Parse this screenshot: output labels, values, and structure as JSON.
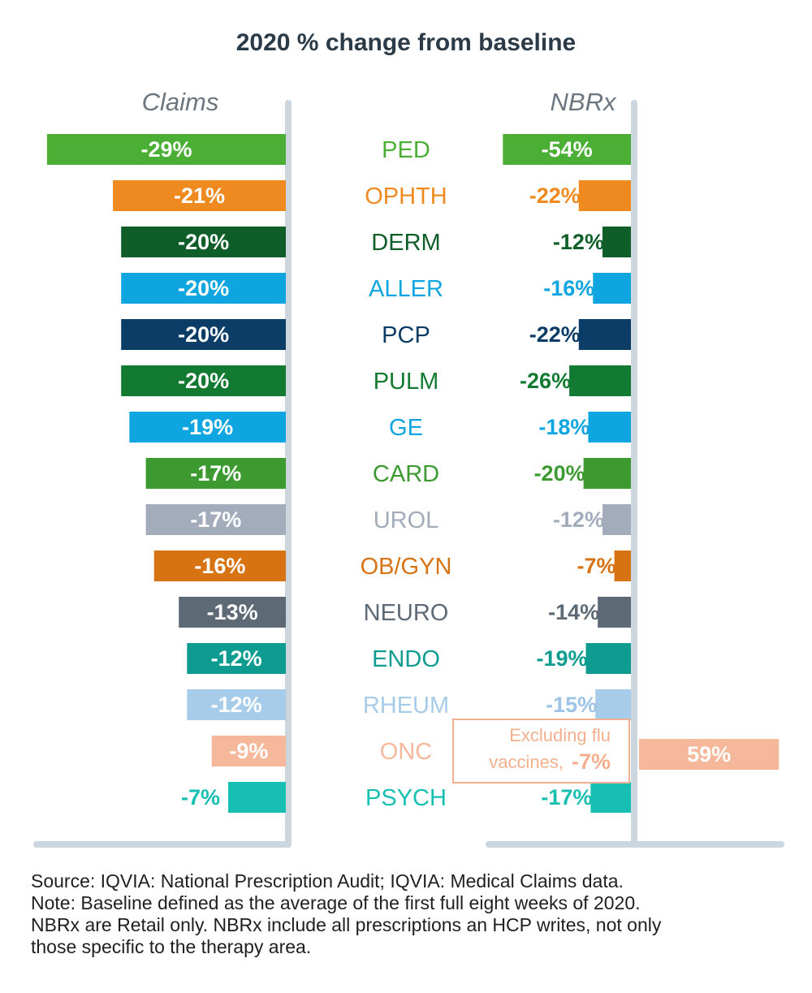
{
  "chart_data": {
    "type": "bar",
    "title": "2020 % change from baseline",
    "left_label": "Claims",
    "right_label": "NBRx",
    "categories": [
      "PED",
      "OPHTH",
      "DERM",
      "ALLER",
      "PCP",
      "PULM",
      "GE",
      "CARD",
      "UROL",
      "OB/GYN",
      "NEURO",
      "ENDO",
      "RHEUM",
      "ONC",
      "PSYCH"
    ],
    "category_colors": [
      "#4aaf34",
      "#ef8a20",
      "#0f5e2a",
      "#0ea5e0",
      "#0b3d66",
      "#127a31",
      "#0ea5e0",
      "#3c9a31",
      "#a3acba",
      "#d87314",
      "#5d6a75",
      "#0f9c90",
      "#a7cce9",
      "#f6b89b",
      "#16bfb2"
    ],
    "series": [
      {
        "name": "Claims",
        "values": [
          -29,
          -21,
          -20,
          -20,
          -20,
          -20,
          -19,
          -17,
          -17,
          -16,
          -13,
          -12,
          -12,
          -9,
          -7
        ],
        "labels": [
          "-29%",
          "-21%",
          "-20%",
          "-20%",
          "-20%",
          "-20%",
          "-19%",
          "-17%",
          "-17%",
          "-16%",
          "-13%",
          "-12%",
          "-12%",
          "-9%",
          "-7%"
        ]
      },
      {
        "name": "NBRx",
        "values": [
          -54,
          -22,
          -12,
          -16,
          -22,
          -26,
          -18,
          -20,
          -12,
          -7,
          -14,
          -19,
          -15,
          59,
          -17
        ],
        "labels": [
          "-54%",
          "-22%",
          "-12%",
          "-16%",
          "-22%",
          "-26%",
          "-18%",
          "-20%",
          "-12%",
          "-7%",
          "-14%",
          "-19%",
          "-15%",
          "59%",
          "-17%"
        ]
      }
    ],
    "annotation": {
      "line1": "Excluding flu",
      "line2": "vaccines,",
      "value": "-7%"
    },
    "axis_color": "#ccd6de"
  },
  "footer": {
    "lines": [
      "Source: IQVIA: National Prescription Audit; IQVIA: Medical Claims data.",
      "Note: Baseline defined as the average of the first full eight weeks of 2020.",
      "NBRx are Retail only. NBRx include all prescriptions an HCP writes, not only",
      "those specific to the therapy area."
    ]
  }
}
